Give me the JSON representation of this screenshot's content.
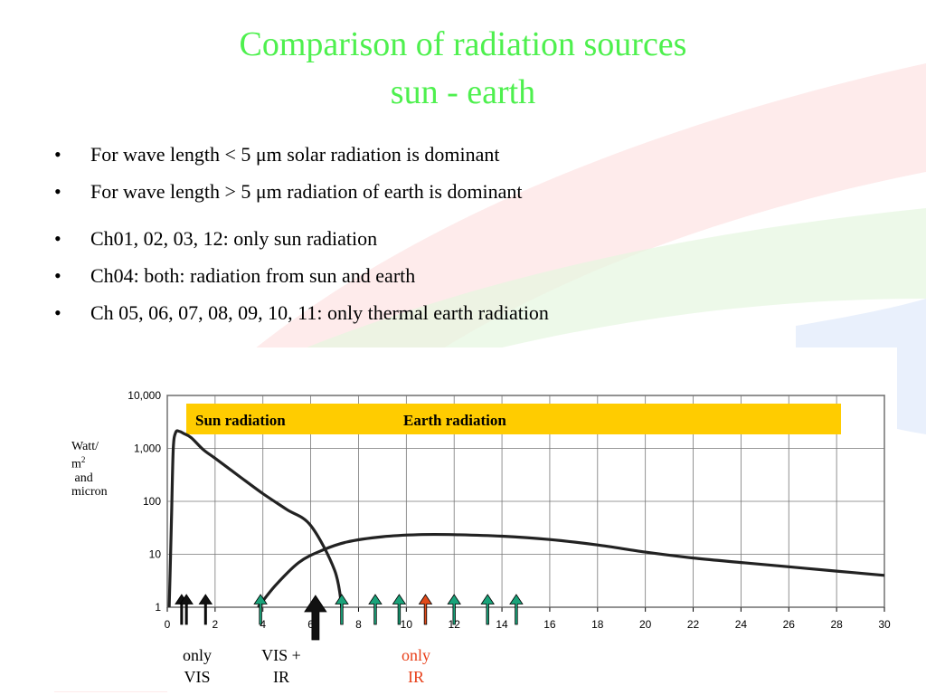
{
  "slide": {
    "title_line1": "Comparison of radiation sources",
    "title_line2": "sun - earth",
    "bullets": [
      "For wave length < 5 μm solar radiation is dominant",
      "For wave length  > 5 μm radiation of earth is dominant",
      "Ch01, 02, 03, 12: only sun radiation",
      "Ch04: both: radiation from sun and earth",
      "Ch 05, 06, 07, 08, 09, 10, 11:  only thermal earth radiation"
    ],
    "bullet_symbol": "•",
    "colors": {
      "title": "#4ef04e",
      "banner": "#ffcc00",
      "green_arrow": "#1aa37a",
      "red_arrow": "#e04a1a",
      "only_ir": "#e8401a"
    }
  },
  "chart_data": {
    "type": "line",
    "y_scale": "log",
    "ylim": [
      1,
      10000
    ],
    "xlim": [
      0,
      30
    ],
    "x_ticks": [
      0,
      2,
      4,
      6,
      8,
      10,
      12,
      14,
      16,
      18,
      20,
      22,
      24,
      26,
      28,
      30
    ],
    "x_tick_labels": [
      "0",
      "2",
      "4",
      "6",
      "8",
      "10",
      "12",
      "14",
      "16",
      "18",
      "20",
      "22",
      "24",
      "26",
      "28",
      "30"
    ],
    "y_ticks": [
      1,
      10,
      100,
      1000,
      10000
    ],
    "y_tick_labels": [
      "1",
      "10",
      "100",
      "1,000",
      "10,000"
    ],
    "ylabel": [
      "Watt/",
      "m",
      "2",
      " and",
      "micron"
    ],
    "banner": {
      "sun": "Sun radiation",
      "earth": "Earth  radiation"
    },
    "series": [
      {
        "name": "Sun radiation",
        "x": [
          0.08,
          0.12,
          0.18,
          0.25,
          0.35,
          0.5,
          0.7,
          1.0,
          1.5,
          2.0,
          3.0,
          4.0,
          5.0,
          6.0,
          7.0,
          7.3
        ],
        "y": [
          1,
          5,
          60,
          1000,
          2000,
          2100,
          1900,
          1600,
          950,
          650,
          300,
          140,
          70,
          35,
          5,
          1
        ]
      },
      {
        "name": "Earth radiation",
        "x": [
          3.8,
          4.5,
          5.5,
          6.5,
          7.5,
          9,
          10.5,
          12,
          14,
          16,
          18,
          20,
          22,
          24,
          26,
          28,
          30
        ],
        "y": [
          1,
          2.5,
          7,
          12,
          17,
          21.5,
          23.5,
          23.5,
          22,
          19,
          15,
          11,
          8.5,
          7,
          5.8,
          4.8,
          4
        ]
      }
    ],
    "channel_arrows": [
      {
        "x": 0.6,
        "kind": "black"
      },
      {
        "x": 0.8,
        "kind": "black"
      },
      {
        "x": 1.6,
        "kind": "black"
      },
      {
        "x": 3.9,
        "kind": "green"
      },
      {
        "x": 6.2,
        "kind": "black-big"
      },
      {
        "x": 7.3,
        "kind": "green"
      },
      {
        "x": 8.7,
        "kind": "green"
      },
      {
        "x": 9.7,
        "kind": "green"
      },
      {
        "x": 10.8,
        "kind": "red"
      },
      {
        "x": 12.0,
        "kind": "green"
      },
      {
        "x": 13.4,
        "kind": "green"
      },
      {
        "x": 14.6,
        "kind": "green"
      }
    ],
    "captions": {
      "only_vis": [
        "only",
        "VIS"
      ],
      "vis_ir": [
        "VIS +",
        "IR"
      ],
      "only_ir": [
        "only",
        "IR"
      ]
    }
  }
}
